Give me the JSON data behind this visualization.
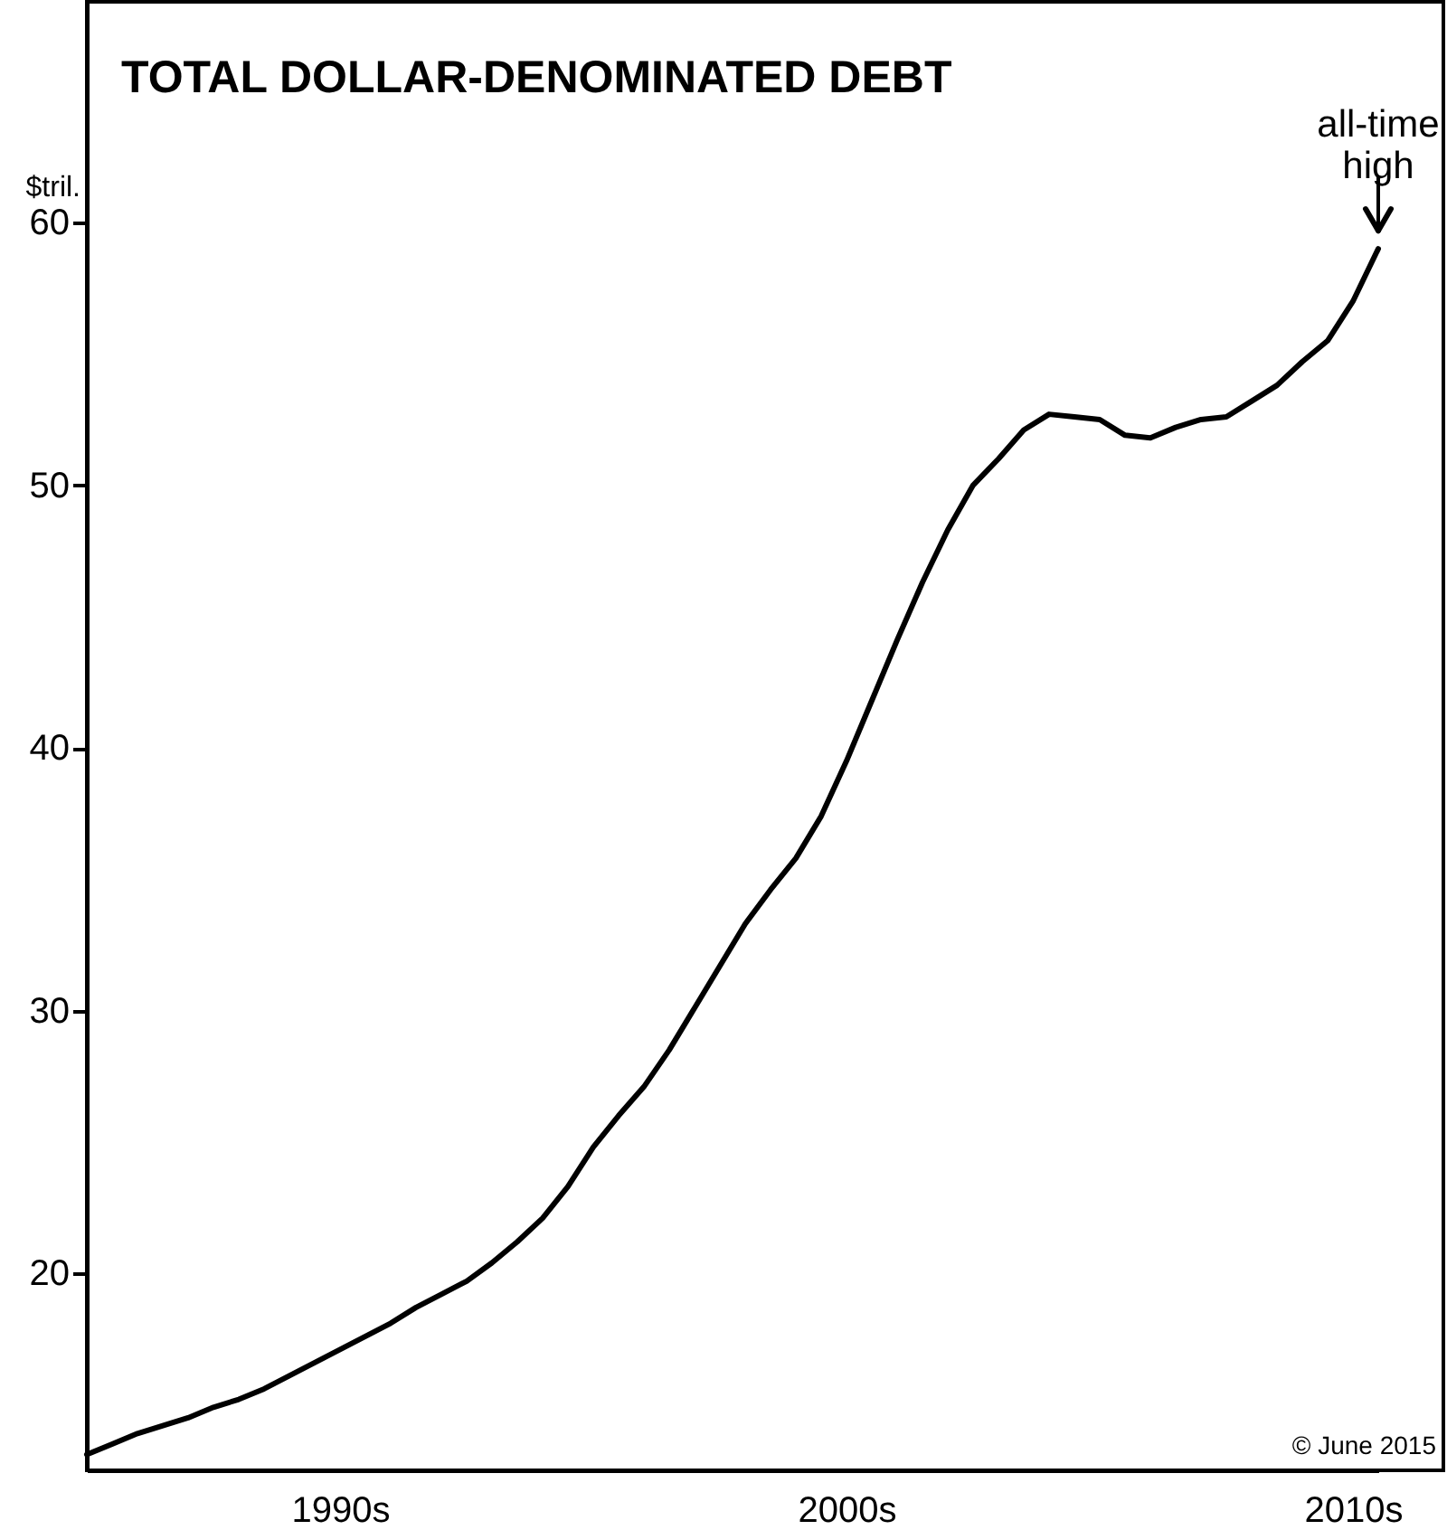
{
  "chart_data": {
    "type": "line",
    "title": "TOTAL DOLLAR-DENOMINATED DEBT",
    "ylabel": "$tril.",
    "categories": [
      null,
      null,
      null,
      null,
      null,
      null,
      null,
      null,
      null,
      null,
      "1990s",
      null,
      null,
      null,
      null,
      null,
      null,
      null,
      null,
      null,
      null,
      null,
      null,
      null,
      null,
      null,
      null,
      null,
      null,
      null,
      "2000s",
      null,
      null,
      null,
      null,
      null,
      null,
      null,
      null,
      null,
      null,
      null,
      null,
      null,
      null,
      null,
      null,
      null,
      null,
      null,
      "2010s",
      null
    ],
    "series": [
      {
        "color": "#000000",
        "values": [
          13.1,
          13.5,
          13.9,
          14.2,
          14.5,
          14.9,
          15.2,
          15.6,
          16.1,
          16.6,
          17.1,
          17.6,
          18.1,
          18.7,
          19.2,
          19.7,
          20.4,
          21.2,
          22.1,
          23.3,
          24.8,
          26.0,
          27.1,
          28.5,
          30.1,
          31.7,
          33.3,
          34.6,
          35.8,
          37.4,
          39.5,
          41.8,
          44.1,
          46.3,
          48.3,
          50.0,
          51.0,
          52.1,
          52.7,
          52.6,
          52.5,
          51.9,
          51.8,
          52.2,
          52.5,
          52.6,
          53.2,
          53.8,
          54.7,
          55.5,
          57.0,
          59.0
        ]
      }
    ],
    "ylim": [
      12.5,
      68.4
    ],
    "yticks": [
      20,
      30,
      40,
      50,
      60
    ],
    "grid": false,
    "marker": "none",
    "line_style": "solid",
    "annotations": [
      {
        "text": "all-time high",
        "y": 59.0
      },
      "© June 2015"
    ]
  }
}
